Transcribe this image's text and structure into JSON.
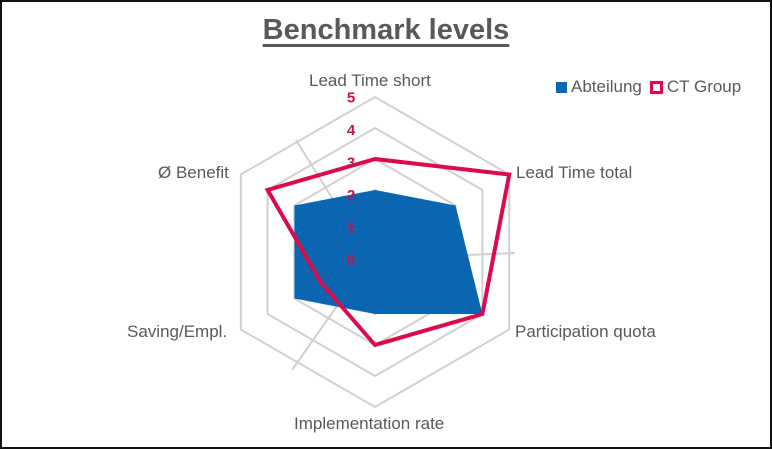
{
  "chart_data": {
    "type": "radar",
    "title": "Benchmark levels",
    "categories": [
      "Lead Time short",
      "Lead Time total",
      "Participation quota",
      "Implementation rate",
      "Saving/Empl.",
      "Ø Benefit"
    ],
    "series": [
      {
        "name": "Abteilung",
        "style": "filled",
        "color": "#0A66B0",
        "values": [
          2,
          3,
          4,
          2,
          3,
          3
        ]
      },
      {
        "name": "CT Group",
        "style": "line",
        "color": "#DC0A4B",
        "values": [
          3,
          5,
          4,
          3,
          2,
          4
        ]
      }
    ],
    "radial_ticks": [
      "0",
      "1",
      "2",
      "3",
      "4",
      "5"
    ],
    "rlim": [
      0,
      5
    ],
    "tick_color": "#C8104F",
    "grid": true,
    "grid_color": "#D0D0D0",
    "legend_position": "top-right"
  },
  "legend": {
    "items": [
      {
        "label": "Abteilung",
        "color": "#0A66B0"
      },
      {
        "label": "CT Group",
        "color": "#DC0A4B"
      }
    ]
  }
}
